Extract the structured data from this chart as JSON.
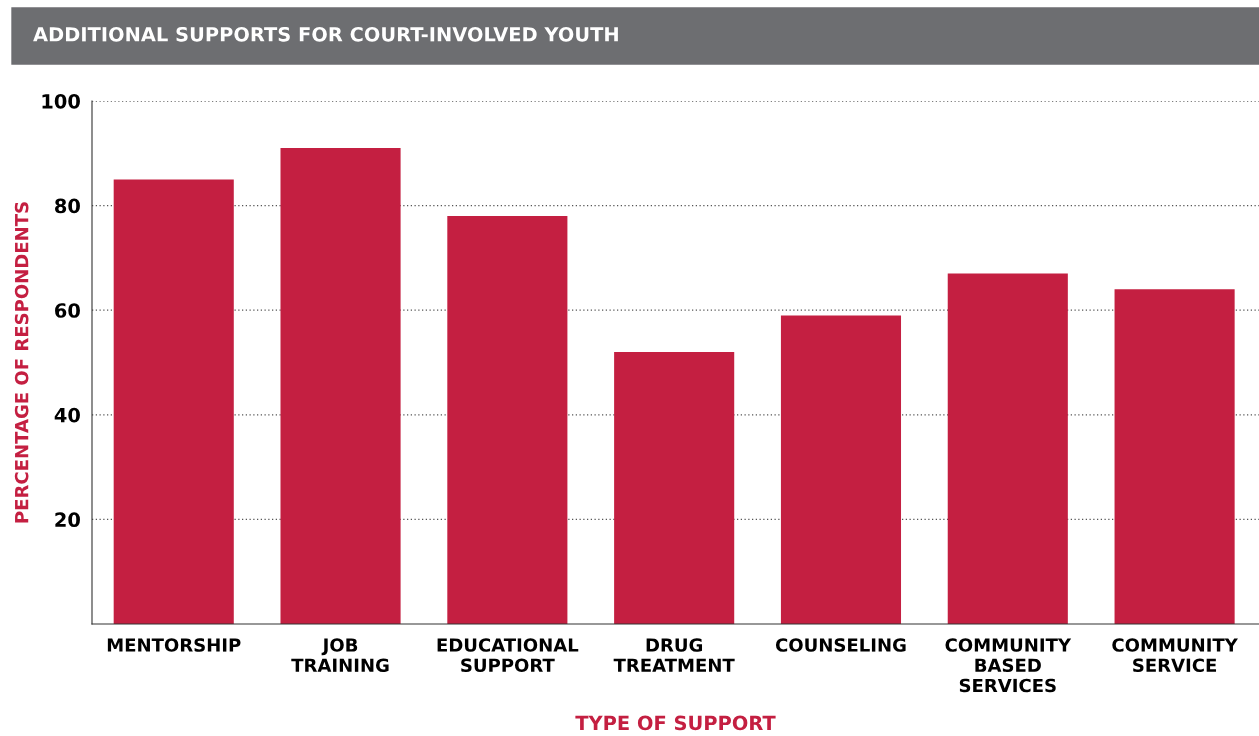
{
  "chart_data": {
    "type": "bar",
    "title": "ADDITIONAL SUPPORTS FOR COURT-INVOLVED YOUTH",
    "xlabel": "TYPE OF SUPPORT",
    "ylabel": "PERCENTAGE OF RESPONDENTS",
    "categories": [
      "MENTORSHIP",
      "JOB\nTRAINING",
      "EDUCATIONAL\nSUPPORT",
      "DRUG\nTREATMENT",
      "COUNSELING",
      "COMMUNITY\nBASED\nSERVICES",
      "COMMUNITY\nSERVICE"
    ],
    "values": [
      85,
      91,
      78,
      52,
      59,
      67,
      64
    ],
    "color": "#c41f41",
    "ylim": [
      0,
      100
    ],
    "yticks": [
      20,
      40,
      60,
      80,
      100
    ],
    "grid": "y"
  }
}
